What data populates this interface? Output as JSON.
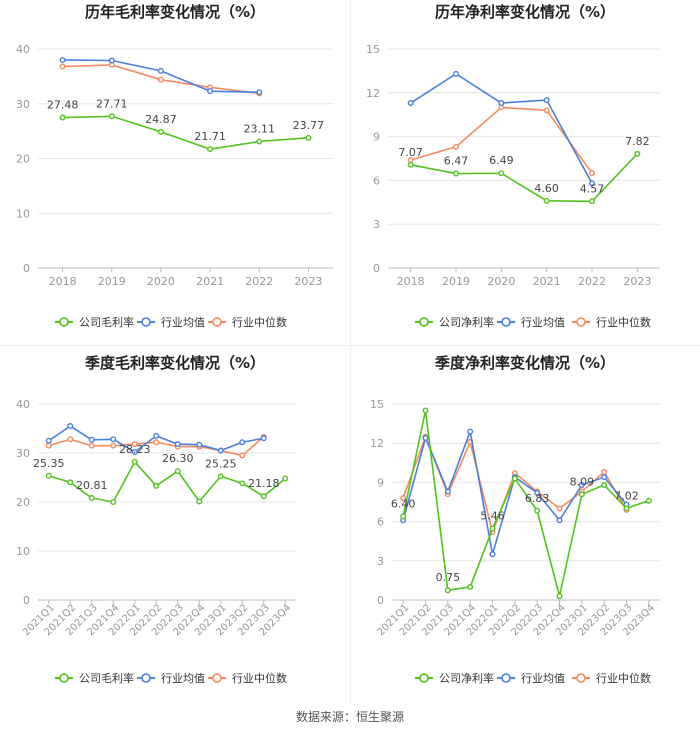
{
  "colors": {
    "company": "#52c41a",
    "avg": "#4a7fe0",
    "median": "#f58a5f",
    "grid": "#e6e6e6",
    "axis": "#999999",
    "text": "#444444"
  },
  "legend": {
    "company_gross": "公司毛利率",
    "company_net": "公司净利率",
    "avg": "行业均值",
    "median": "行业中位数"
  },
  "footer": "数据来源：恒生聚源",
  "chart_data": [
    {
      "type": "line",
      "title": "历年毛利率变化情况（%）",
      "categories": [
        "2018",
        "2019",
        "2020",
        "2021",
        "2022",
        "2023"
      ],
      "ylim": [
        0,
        40
      ],
      "yticks": [
        0,
        10,
        20,
        30,
        40
      ],
      "series": [
        {
          "name": "公司毛利率",
          "key": "company",
          "values": [
            27.48,
            27.71,
            24.87,
            21.71,
            23.11,
            23.77
          ],
          "labels": [
            "27.48",
            "27.71",
            "24.87",
            "21.71",
            "23.11",
            "23.77"
          ]
        },
        {
          "name": "行业均值",
          "key": "avg",
          "values": [
            38.0,
            37.9,
            36.0,
            32.3,
            32.1,
            null
          ]
        },
        {
          "name": "行业中位数",
          "key": "median",
          "values": [
            36.8,
            37.1,
            34.4,
            33.0,
            31.9,
            null
          ]
        }
      ]
    },
    {
      "type": "line",
      "title": "历年净利率变化情况（%）",
      "categories": [
        "2018",
        "2019",
        "2020",
        "2021",
        "2022",
        "2023"
      ],
      "ylim": [
        0,
        15
      ],
      "yticks": [
        0,
        3,
        6,
        9,
        12,
        15
      ],
      "series": [
        {
          "name": "公司净利率",
          "key": "company",
          "values": [
            7.07,
            6.47,
            6.49,
            4.6,
            4.57,
            7.82
          ],
          "labels": [
            "7.07",
            "6.47",
            "6.49",
            "4.60",
            "4.57",
            "7.82"
          ]
        },
        {
          "name": "行业均值",
          "key": "avg",
          "values": [
            11.3,
            13.3,
            11.3,
            11.5,
            5.8,
            null
          ]
        },
        {
          "name": "行业中位数",
          "key": "median",
          "values": [
            7.4,
            8.3,
            11.0,
            10.8,
            6.5,
            null
          ]
        }
      ]
    },
    {
      "type": "line",
      "title": "季度毛利率变化情况（%）",
      "categories": [
        "2021Q1",
        "2021Q2",
        "2021Q3",
        "2021Q4",
        "2022Q1",
        "2022Q2",
        "2022Q3",
        "2022Q4",
        "2023Q1",
        "2023Q2",
        "2023Q3",
        "2023Q4"
      ],
      "ylim": [
        0,
        40
      ],
      "yticks": [
        0,
        10,
        20,
        30,
        40
      ],
      "series": [
        {
          "name": "公司毛利率",
          "key": "company",
          "values": [
            25.35,
            24.0,
            20.81,
            20.0,
            28.2,
            23.3,
            26.3,
            20.1,
            25.25,
            23.8,
            21.18,
            24.8
          ],
          "labels": [
            "25.35",
            "",
            "20.81",
            "",
            "28.23",
            "",
            "26.30",
            "",
            "25.25",
            "",
            "21.18",
            ""
          ]
        },
        {
          "name": "行业均值",
          "key": "avg",
          "values": [
            32.5,
            35.5,
            32.7,
            32.8,
            30.2,
            33.5,
            31.8,
            31.7,
            30.5,
            32.2,
            33.0,
            null
          ]
        },
        {
          "name": "行业中位数",
          "key": "median",
          "values": [
            31.5,
            32.8,
            31.5,
            31.5,
            31.8,
            32.2,
            31.3,
            31.3,
            30.5,
            29.5,
            33.3,
            null
          ]
        }
      ]
    },
    {
      "type": "line",
      "title": "季度净利率变化情况（%）",
      "categories": [
        "2021Q1",
        "2021Q2",
        "2021Q3",
        "2021Q4",
        "2022Q1",
        "2022Q2",
        "2022Q3",
        "2022Q4",
        "2023Q1",
        "2023Q2",
        "2023Q3",
        "2023Q4"
      ],
      "ylim": [
        0,
        15
      ],
      "yticks": [
        0,
        3,
        6,
        9,
        12,
        15
      ],
      "series": [
        {
          "name": "公司净利率",
          "key": "company",
          "values": [
            6.4,
            14.5,
            0.75,
            1.0,
            5.46,
            9.3,
            6.83,
            0.3,
            8.09,
            8.8,
            7.02,
            7.6
          ],
          "labels": [
            "6.40",
            "",
            "0.75",
            "",
            "5.46",
            "",
            "6.83",
            "",
            "8.09",
            "",
            "7.02",
            ""
          ]
        },
        {
          "name": "行业均值",
          "key": "avg",
          "values": [
            6.1,
            12.4,
            8.3,
            12.9,
            3.5,
            9.4,
            8.2,
            6.1,
            8.8,
            9.4,
            7.3,
            null
          ]
        },
        {
          "name": "行业中位数",
          "key": "median",
          "values": [
            7.8,
            12.5,
            8.1,
            12.1,
            5.2,
            9.7,
            8.3,
            7.0,
            8.3,
            9.8,
            6.9,
            null
          ]
        }
      ]
    }
  ]
}
